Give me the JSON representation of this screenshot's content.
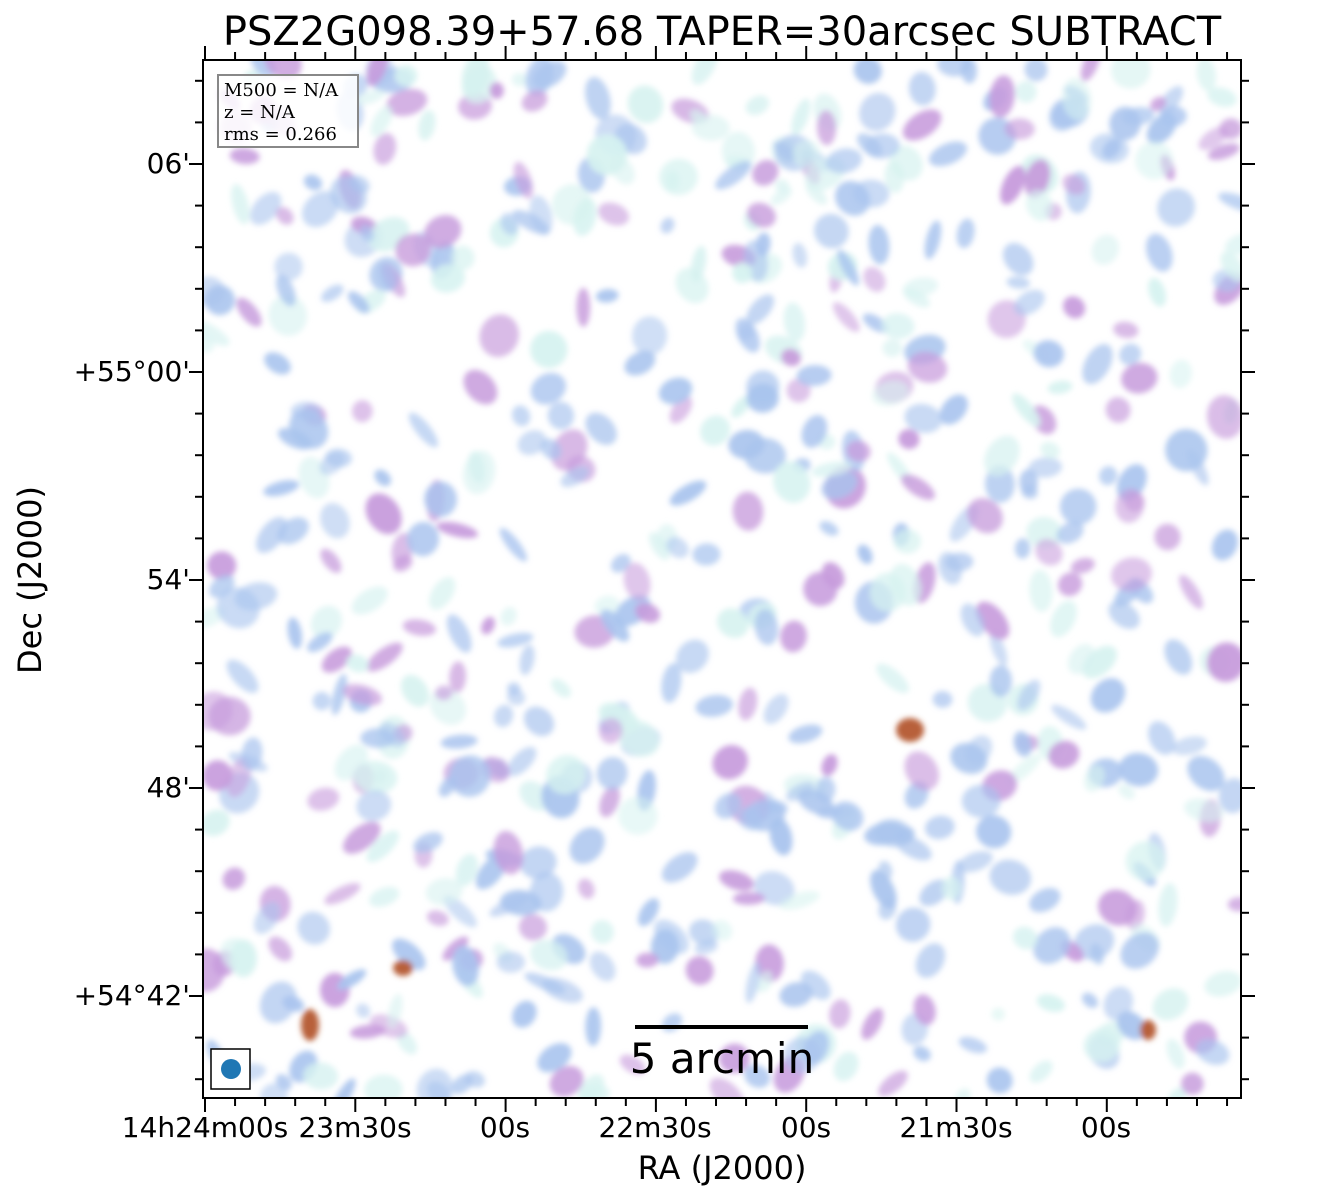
{
  "chart_data": {
    "type": "heatmap",
    "title": "PSZ2G098.39+57.68 TAPER=30arcsec SUBTRACT",
    "xlabel": "RA (J2000)",
    "ylabel": "Dec (J2000)",
    "x_tick_labels": [
      "14h24m00s",
      "23m30s",
      "00s",
      "22m30s",
      "00s",
      "21m30s",
      "00s"
    ],
    "y_tick_labels": [
      "06'",
      "+55°00'",
      "54'",
      "48'",
      "+54°42'"
    ],
    "colormap": "white-cyan-blue-purple-red",
    "colors": {
      "low": "#d6f2f0",
      "mid": "#a9c4ee",
      "high": "#c79bdc",
      "peak": "#b8603a"
    },
    "info_box": [
      "M500 = N/A",
      "z = N/A",
      "rms = 0.266"
    ],
    "scale_bar_label": "5 arcmin",
    "beam_color": "#1f77b4"
  }
}
